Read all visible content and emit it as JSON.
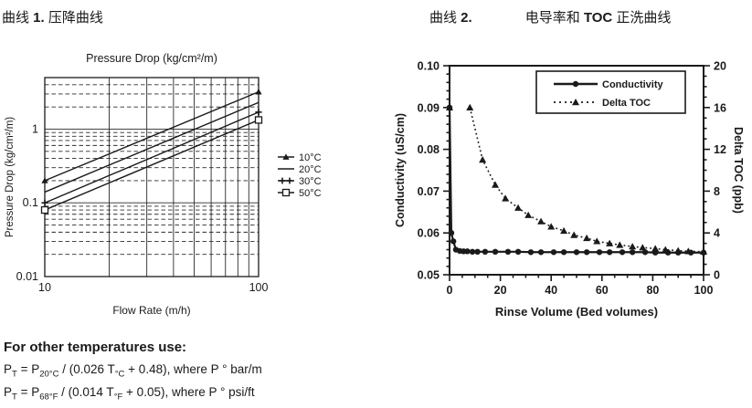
{
  "header1": {
    "prefix": "曲线 ",
    "number": "1.",
    "rest": " 压降曲线"
  },
  "header2": {
    "prefix": "曲线 ",
    "number": "2.",
    "mid": "电导率和 ",
    "bold": "TOC",
    "rest": " 正洗曲线"
  },
  "notes": {
    "heading": "For other temperatures use:",
    "formula1": {
      "p1": "P",
      "s1": "T",
      "p2": " = P",
      "s2": "20°C",
      "p3": " / (0.026 T",
      "s3": "°C",
      "p4": " + 0.48), where P ° bar/m"
    },
    "formula2": {
      "p1": "P",
      "s1": "T",
      "p2": " = P",
      "s2": "68°F",
      "p3": " / (0.014 T",
      "s3": "°F",
      "p4": " + 0.05), where P ° psi/ft"
    }
  },
  "chart_data": [
    {
      "type": "line",
      "title": "Pressure Drop (kg/cm²/m)",
      "xlabel": "Flow Rate (m/h)",
      "ylabel": "Pressure Drop (kg/cm²/m)",
      "xscale": "log",
      "yscale": "log",
      "xlim": [
        10,
        100
      ],
      "ylim": [
        0.01,
        5
      ],
      "xticks": [
        10,
        100
      ],
      "yticks": [
        0.01,
        0.1,
        1
      ],
      "grid": {
        "x_major_solid": [
          20,
          30,
          40,
          50,
          60,
          70,
          80,
          90
        ],
        "y_major_solid": [
          0.1,
          1
        ],
        "y_minor_dashed": [
          0.02,
          0.03,
          0.04,
          0.05,
          0.06,
          0.07,
          0.08,
          0.09,
          0.2,
          0.3,
          0.4,
          0.5,
          0.6,
          0.7,
          0.8,
          0.9,
          2,
          3,
          4
        ]
      },
      "legend_position": "right-outside",
      "series": [
        {
          "name": "10°C",
          "marker": "triangle",
          "x": [
            10,
            100
          ],
          "y": [
            0.2,
            3.2
          ]
        },
        {
          "name": "20°C",
          "marker": "none",
          "x": [
            10,
            100
          ],
          "y": [
            0.14,
            2.3
          ]
        },
        {
          "name": "30°C",
          "marker": "plus",
          "x": [
            10,
            100
          ],
          "y": [
            0.1,
            1.7
          ]
        },
        {
          "name": "50°C",
          "marker": "square",
          "x": [
            10,
            100
          ],
          "y": [
            0.08,
            1.33
          ]
        }
      ]
    },
    {
      "type": "line",
      "xlabel": "Rinse Volume  (Bed volumes)",
      "ylabel_left": "Conductivity  (uS/cm)",
      "ylabel_right": "Delta TOC  (ppb)",
      "xlim": [
        0,
        100
      ],
      "ylim_left": [
        0.05,
        0.1
      ],
      "ylim_right": [
        0,
        20
      ],
      "xticks": [
        0,
        20,
        40,
        60,
        80,
        100
      ],
      "x_minor_step": 5,
      "yticks_left": [
        0.05,
        0.06,
        0.07,
        0.08,
        0.09,
        0.1
      ],
      "y_left_minor_step": 0.002,
      "yticks_right": [
        0,
        4,
        8,
        12,
        16,
        20
      ],
      "y_right_minor_step": 1,
      "grid": false,
      "legend_position": "top-inside",
      "series": [
        {
          "name": "Conductivity",
          "axis": "left",
          "line": "solid",
          "marker": "circle",
          "points": [
            [
              0,
              0.09
            ],
            [
              0.7,
              0.06
            ],
            [
              1.5,
              0.058
            ],
            [
              2.5,
              0.056
            ],
            [
              4,
              0.0557
            ],
            [
              5.5,
              0.0556
            ],
            [
              7,
              0.0556
            ],
            [
              9,
              0.0555
            ],
            [
              11,
              0.0555
            ],
            [
              14,
              0.0555
            ],
            [
              18,
              0.0555
            ],
            [
              23,
              0.0555
            ],
            [
              27,
              0.0555
            ],
            [
              32,
              0.0554
            ],
            [
              36,
              0.0554
            ],
            [
              41,
              0.0554
            ],
            [
              45,
              0.0554
            ],
            [
              50,
              0.0554
            ],
            [
              54,
              0.0554
            ],
            [
              59,
              0.0554
            ],
            [
              63,
              0.0554
            ],
            [
              68,
              0.0554
            ],
            [
              72,
              0.0554
            ],
            [
              77,
              0.0554
            ],
            [
              81,
              0.0553
            ],
            [
              86,
              0.0553
            ],
            [
              90,
              0.0553
            ],
            [
              95,
              0.0553
            ],
            [
              100,
              0.0553
            ]
          ]
        },
        {
          "name": "Delta TOC",
          "axis": "right",
          "line": "dotted",
          "marker": "triangle",
          "gap_first": true,
          "points": [
            [
              0,
              16
            ],
            [
              8,
              16
            ],
            [
              13,
              11
            ],
            [
              18,
              8.6
            ],
            [
              22,
              7.3
            ],
            [
              27,
              6.4
            ],
            [
              31,
              5.7
            ],
            [
              36,
              5.1
            ],
            [
              40,
              4.6
            ],
            [
              45,
              4.2
            ],
            [
              49,
              3.8
            ],
            [
              54,
              3.5
            ],
            [
              58,
              3.2
            ],
            [
              63,
              3.0
            ],
            [
              67,
              2.85
            ],
            [
              72,
              2.7
            ],
            [
              76,
              2.6
            ],
            [
              81,
              2.5
            ],
            [
              85,
              2.4
            ],
            [
              90,
              2.3
            ],
            [
              94,
              2.25
            ],
            [
              100,
              2.2
            ]
          ]
        }
      ]
    }
  ]
}
